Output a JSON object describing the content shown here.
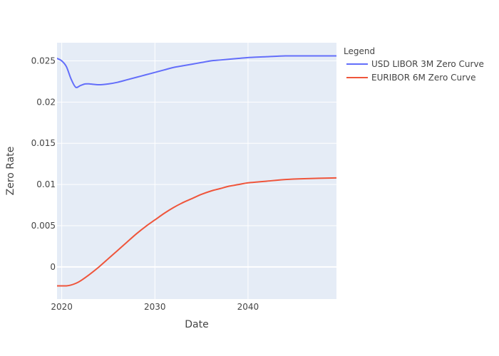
{
  "chart_data": {
    "type": "line",
    "x_type": "date",
    "xlabel": "Date",
    "ylabel": "Zero Rate",
    "xlim": [
      "2019-06-30",
      "2049-06-30"
    ],
    "ylim": [
      -0.0039,
      0.0272
    ],
    "x_ticks": [
      {
        "value": "2020-01-01",
        "label": "2020"
      },
      {
        "value": "2030-01-01",
        "label": "2030"
      },
      {
        "value": "2040-01-01",
        "label": "2040"
      }
    ],
    "y_ticks": [
      {
        "value": 0,
        "label": "0"
      },
      {
        "value": 0.005,
        "label": "0.005"
      },
      {
        "value": 0.01,
        "label": "0.01"
      },
      {
        "value": 0.015,
        "label": "0.015"
      },
      {
        "value": 0.02,
        "label": "0.02"
      },
      {
        "value": 0.025,
        "label": "0.025"
      }
    ],
    "grid": true,
    "legend_title": "Legend",
    "legend_position": "right",
    "background_color": "#E5ECF6",
    "series": [
      {
        "name": "USD LIBOR 3M Zero Curve",
        "color": "#636EFA",
        "x": [
          "2019-06-30",
          "2020-01-01",
          "2020-07-01",
          "2021-01-01",
          "2021-07-01",
          "2022-01-01",
          "2022-07-01",
          "2023-01-01",
          "2024-01-01",
          "2025-01-01",
          "2026-01-01",
          "2027-01-01",
          "2028-01-01",
          "2029-01-01",
          "2030-01-01",
          "2031-01-01",
          "2032-01-01",
          "2033-01-01",
          "2034-01-01",
          "2035-01-01",
          "2036-01-01",
          "2037-01-01",
          "2038-01-01",
          "2039-01-01",
          "2040-01-01",
          "2042-01-01",
          "2044-01-01",
          "2046-01-01",
          "2049-06-30"
        ],
        "y": [
          0.0253,
          0.025,
          0.0243,
          0.0228,
          0.0218,
          0.022,
          0.0222,
          0.0222,
          0.0221,
          0.0222,
          0.0224,
          0.0227,
          0.023,
          0.0233,
          0.0236,
          0.0239,
          0.0242,
          0.0244,
          0.0246,
          0.0248,
          0.025,
          0.0251,
          0.0252,
          0.0253,
          0.0254,
          0.0255,
          0.0256,
          0.0256,
          0.0256
        ]
      },
      {
        "name": "EURIBOR 6M Zero Curve",
        "color": "#EF553B",
        "x": [
          "2019-06-30",
          "2020-01-01",
          "2020-07-01",
          "2021-01-01",
          "2021-07-01",
          "2022-01-01",
          "2023-01-01",
          "2024-01-01",
          "2025-01-01",
          "2026-01-01",
          "2027-01-01",
          "2028-01-01",
          "2029-01-01",
          "2030-01-01",
          "2031-01-01",
          "2032-01-01",
          "2033-01-01",
          "2034-01-01",
          "2035-01-01",
          "2036-01-01",
          "2037-01-01",
          "2038-01-01",
          "2039-01-01",
          "2040-01-01",
          "2041-01-01",
          "2042-01-01",
          "2044-01-01",
          "2046-01-01",
          "2049-06-30"
        ],
        "y": [
          -0.0023,
          -0.0023,
          -0.0023,
          -0.0022,
          -0.002,
          -0.0017,
          -0.0009,
          0.0,
          0.001,
          0.002,
          0.003,
          0.004,
          0.0049,
          0.0057,
          0.0065,
          0.0072,
          0.0078,
          0.0083,
          0.0088,
          0.0092,
          0.0095,
          0.0098,
          0.01,
          0.0102,
          0.0103,
          0.0104,
          0.0106,
          0.0107,
          0.0108
        ]
      }
    ]
  }
}
